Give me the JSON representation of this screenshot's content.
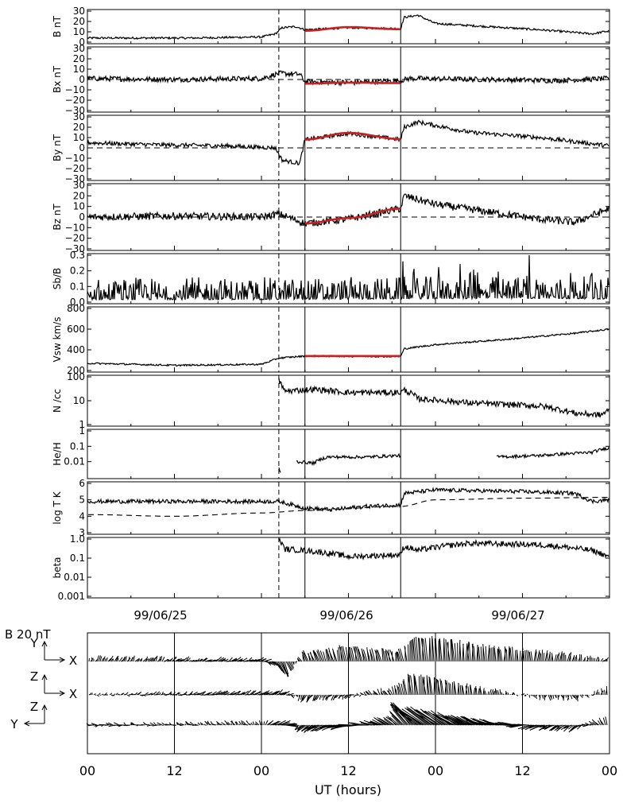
{
  "colors": {
    "ink": "#000000",
    "fit": "#cc1f1f",
    "background": "#ffffff"
  },
  "events": {
    "shock_day": 2.1,
    "mc_start_day": 2.25,
    "mc_end_day": 2.8
  },
  "date_labels": [
    {
      "text": "99/06/25",
      "day": 1.5
    },
    {
      "text": "99/06/26",
      "day": 2.5
    },
    {
      "text": "99/06/27",
      "day": 3.5
    }
  ],
  "chart_data": [
    {
      "id": "B",
      "ylabel": "B nT",
      "scale": "linear",
      "ylim": [
        0,
        30
      ],
      "ticks": [
        "0",
        "10",
        "20",
        "30"
      ],
      "tick_values": [
        0,
        10,
        20,
        30
      ],
      "zero_dashed": false,
      "profile": [
        [
          1.0,
          4
        ],
        [
          1.6,
          4
        ],
        [
          2.0,
          5
        ],
        [
          2.08,
          8
        ],
        [
          2.12,
          14
        ],
        [
          2.2,
          15
        ],
        [
          2.25,
          12
        ],
        [
          2.5,
          14
        ],
        [
          2.8,
          13
        ],
        [
          2.82,
          24
        ],
        [
          2.9,
          26
        ],
        [
          3.0,
          18
        ],
        [
          3.3,
          15
        ],
        [
          3.6,
          12
        ],
        [
          3.9,
          8
        ],
        [
          4.0,
          11
        ]
      ],
      "noise": 1.0,
      "fit": [
        [
          2.25,
          11
        ],
        [
          2.5,
          14.5
        ],
        [
          2.8,
          12.5
        ]
      ]
    },
    {
      "id": "Bx",
      "ylabel": "Bx nT",
      "scale": "linear",
      "ylim": [
        -30,
        30
      ],
      "ticks": [
        "−30",
        "−20",
        "−10",
        "0",
        "10",
        "20",
        "30"
      ],
      "tick_values": [
        -30,
        -20,
        -10,
        0,
        10,
        20,
        30
      ],
      "zero_dashed": true,
      "profile": [
        [
          1.0,
          1
        ],
        [
          1.5,
          0
        ],
        [
          2.0,
          1
        ],
        [
          2.1,
          6
        ],
        [
          2.22,
          5
        ],
        [
          2.25,
          -2
        ],
        [
          2.5,
          -3
        ],
        [
          2.8,
          -1
        ],
        [
          2.85,
          1
        ],
        [
          3.3,
          0
        ],
        [
          3.7,
          -1
        ],
        [
          4.0,
          1
        ]
      ],
      "noise": 2.5,
      "fit": [
        [
          2.25,
          -4
        ],
        [
          2.5,
          -3
        ],
        [
          2.8,
          -3.5
        ]
      ]
    },
    {
      "id": "By",
      "ylabel": "By nT",
      "scale": "linear",
      "ylim": [
        -30,
        30
      ],
      "ticks": [
        "−30",
        "−20",
        "−10",
        "0",
        "10",
        "20",
        "30"
      ],
      "tick_values": [
        -30,
        -20,
        -10,
        0,
        10,
        20,
        30
      ],
      "zero_dashed": true,
      "profile": [
        [
          1.0,
          5
        ],
        [
          1.4,
          3
        ],
        [
          1.8,
          2
        ],
        [
          2.08,
          0
        ],
        [
          2.12,
          -12
        ],
        [
          2.22,
          -15
        ],
        [
          2.25,
          8
        ],
        [
          2.5,
          14
        ],
        [
          2.8,
          8
        ],
        [
          2.82,
          20
        ],
        [
          2.9,
          25
        ],
        [
          3.2,
          15
        ],
        [
          3.6,
          10
        ],
        [
          4.0,
          2
        ]
      ],
      "noise": 2.0,
      "fit": [
        [
          2.25,
          8
        ],
        [
          2.5,
          14.5
        ],
        [
          2.8,
          8.5
        ]
      ]
    },
    {
      "id": "Bz",
      "ylabel": "Bz nT",
      "scale": "linear",
      "ylim": [
        -30,
        30
      ],
      "ticks": [
        "−30",
        "−20",
        "−10",
        "0",
        "10",
        "20",
        "30"
      ],
      "tick_values": [
        -30,
        -20,
        -10,
        0,
        10,
        20,
        30
      ],
      "zero_dashed": true,
      "profile": [
        [
          1.0,
          0
        ],
        [
          1.5,
          1
        ],
        [
          2.0,
          0
        ],
        [
          2.1,
          3
        ],
        [
          2.25,
          -6
        ],
        [
          2.5,
          -2
        ],
        [
          2.8,
          8
        ],
        [
          2.82,
          20
        ],
        [
          3.0,
          12
        ],
        [
          3.3,
          5
        ],
        [
          3.6,
          -2
        ],
        [
          3.8,
          -5
        ],
        [
          4.0,
          8
        ]
      ],
      "noise": 3.5,
      "fit": [
        [
          2.25,
          -6
        ],
        [
          2.5,
          -1
        ],
        [
          2.8,
          8
        ]
      ]
    },
    {
      "id": "SbB",
      "ylabel": "Sb/B",
      "scale": "linear",
      "ylim": [
        0,
        0.3
      ],
      "ticks": [
        "0.0",
        "0.1",
        "0.2",
        "0.3"
      ],
      "tick_values": [
        0,
        0.1,
        0.2,
        0.3
      ],
      "zero_dashed": false,
      "spiky": true,
      "profile": [
        [
          1.0,
          0.04
        ],
        [
          2.0,
          0.04
        ],
        [
          2.8,
          0.05
        ],
        [
          3.5,
          0.06
        ],
        [
          4.0,
          0.05
        ]
      ],
      "noise": 0.06,
      "fit": []
    },
    {
      "id": "Vsw",
      "ylabel": "Vsw km/s",
      "scale": "linear",
      "ylim": [
        200,
        800
      ],
      "ticks": [
        "200",
        "400",
        "600",
        "800"
      ],
      "tick_values": [
        200,
        400,
        600,
        800
      ],
      "zero_dashed": false,
      "profile": [
        [
          1.0,
          270
        ],
        [
          1.5,
          250
        ],
        [
          2.0,
          260
        ],
        [
          2.1,
          320
        ],
        [
          2.25,
          340
        ],
        [
          2.8,
          335
        ],
        [
          2.82,
          410
        ],
        [
          3.0,
          450
        ],
        [
          3.4,
          500
        ],
        [
          3.8,
          560
        ],
        [
          4.0,
          600
        ]
      ],
      "noise": 8,
      "fit": [
        [
          2.25,
          340
        ],
        [
          2.8,
          340
        ]
      ]
    },
    {
      "id": "N",
      "ylabel": "N /cc",
      "scale": "log",
      "ylim": [
        1,
        100
      ],
      "ticks": [
        "1",
        "10",
        "100"
      ],
      "tick_values": [
        1,
        10,
        100
      ],
      "zero_dashed": false,
      "start_day": 2.1,
      "profile": [
        [
          2.1,
          70
        ],
        [
          2.13,
          25
        ],
        [
          2.3,
          30
        ],
        [
          2.5,
          22
        ],
        [
          2.8,
          22
        ],
        [
          2.82,
          28
        ],
        [
          2.9,
          12
        ],
        [
          3.2,
          8
        ],
        [
          3.6,
          6
        ],
        [
          3.8,
          3
        ],
        [
          3.95,
          2.5
        ],
        [
          4.0,
          4
        ]
      ],
      "noise": 0.25,
      "fit": []
    },
    {
      "id": "HeH",
      "ylabel": "He/H",
      "scale": "log",
      "ylim": [
        0.001,
        1.0
      ],
      "ticks": [
        "0.01",
        "0.1",
        "1"
      ],
      "tick_values": [
        0.01,
        0.1,
        1
      ],
      "zero_dashed": false,
      "segments": [
        [
          [
            2.1,
            0.004
          ],
          [
            2.11,
            0.002
          ]
        ],
        [
          [
            2.2,
            0.01
          ],
          [
            2.3,
            0.008
          ],
          [
            2.38,
            0.02
          ],
          [
            2.6,
            0.02
          ],
          [
            2.8,
            0.025
          ]
        ],
        [
          [
            3.35,
            0.02
          ],
          [
            3.6,
            0.025
          ],
          [
            3.9,
            0.04
          ],
          [
            4.0,
            0.08
          ]
        ]
      ],
      "noise": 0.2,
      "fit": []
    },
    {
      "id": "logT",
      "ylabel": "log T K",
      "scale": "linear",
      "ylim": [
        3,
        6
      ],
      "ticks": [
        "3",
        "4",
        "5",
        "6"
      ],
      "tick_values": [
        3,
        4,
        5,
        6
      ],
      "zero_dashed": false,
      "profile": [
        [
          2.1,
          4.9
        ],
        [
          2.25,
          4.5
        ],
        [
          2.4,
          4.4
        ],
        [
          2.6,
          4.6
        ],
        [
          2.8,
          4.7
        ],
        [
          2.82,
          5.4
        ],
        [
          3.0,
          5.6
        ],
        [
          3.5,
          5.5
        ],
        [
          3.8,
          5.4
        ],
        [
          3.9,
          4.9
        ],
        [
          4.0,
          5.0
        ]
      ],
      "noise": 0.12,
      "fit": [],
      "expected": [
        [
          1.0,
          4.1
        ],
        [
          1.5,
          4.0
        ],
        [
          2.0,
          4.2
        ],
        [
          2.25,
          4.35
        ],
        [
          2.8,
          4.6
        ],
        [
          3.0,
          5.0
        ],
        [
          3.5,
          5.1
        ],
        [
          4.0,
          5.15
        ]
      ]
    },
    {
      "id": "beta",
      "ylabel": "beta",
      "scale": "log",
      "ylim": [
        0.001,
        1.0
      ],
      "ticks": [
        "0.001",
        "0.01",
        "0.1",
        "1.0"
      ],
      "tick_values": [
        0.001,
        0.01,
        0.1,
        1.0
      ],
      "zero_dashed": false,
      "start_day": 2.1,
      "profile": [
        [
          2.1,
          1.0
        ],
        [
          2.13,
          0.3
        ],
        [
          2.25,
          0.25
        ],
        [
          2.5,
          0.12
        ],
        [
          2.8,
          0.15
        ],
        [
          2.82,
          0.4
        ],
        [
          2.9,
          0.25
        ],
        [
          3.2,
          0.6
        ],
        [
          3.6,
          0.5
        ],
        [
          3.9,
          0.25
        ],
        [
          4.0,
          0.1
        ]
      ],
      "noise": 0.3,
      "fit": []
    }
  ],
  "hodogram": {
    "scale_label": "B  20 nT",
    "xlabel": "UT (hours)",
    "ticks": [
      "00",
      "12",
      "00",
      "12",
      "00",
      "12",
      "00"
    ],
    "tick_days": [
      1.0,
      1.5,
      2.0,
      2.5,
      3.0,
      3.5,
      4.0
    ],
    "rows": [
      {
        "v": "Y",
        "h": "X",
        "h_side": "right"
      },
      {
        "v": "Z",
        "h": "X",
        "h_side": "right"
      },
      {
        "v": "Z",
        "h": "Y",
        "h_side": "left"
      }
    ]
  }
}
